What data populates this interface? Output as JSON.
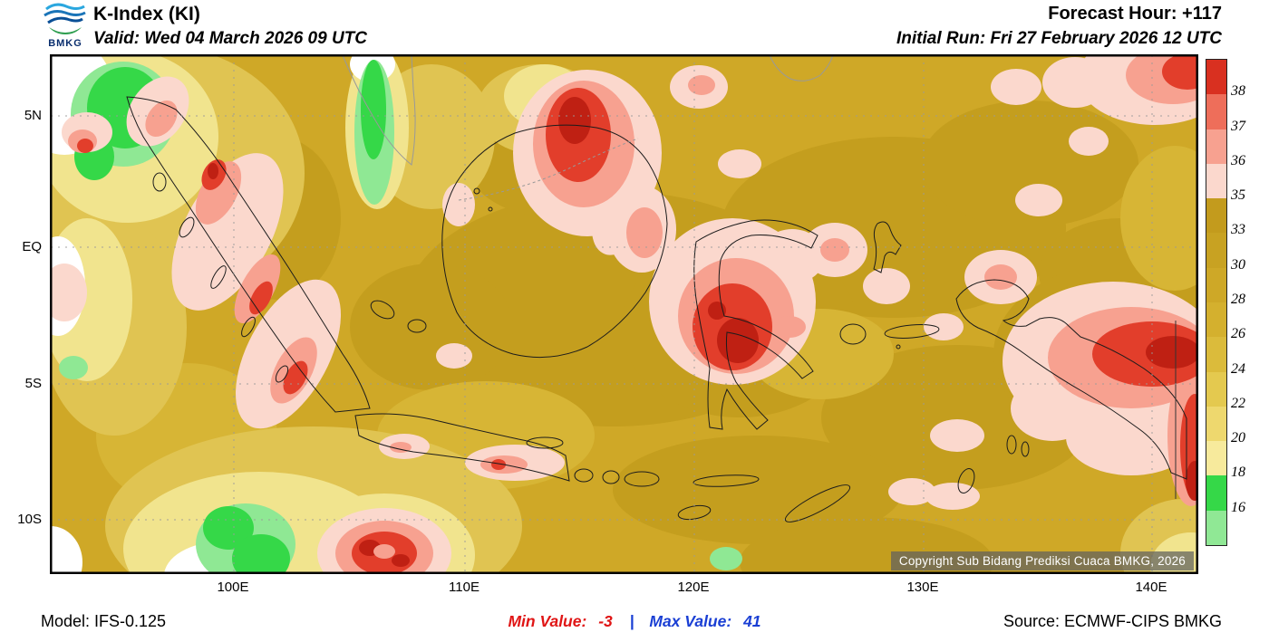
{
  "header": {
    "logo_text": "BMKG",
    "title": "K-Index (KI)",
    "valid": "Valid: Wed 04 March 2026 09 UTC",
    "forecast_hour": "Forecast Hour: +117",
    "initial_run": "Initial Run: Fri 27 February 2026 12 UTC"
  },
  "map": {
    "lat_labels": [
      "5N",
      "EQ",
      "5S",
      "10S"
    ],
    "lon_labels": [
      "100E",
      "110E",
      "120E",
      "130E",
      "140E"
    ],
    "copyright": "Copyright Sub Bidang Prediksi Cuaca BMKG, 2026"
  },
  "colorbar": {
    "values": [
      "38",
      "37",
      "36",
      "35",
      "33",
      "30",
      "28",
      "26",
      "24",
      "22",
      "20",
      "18",
      "16"
    ],
    "segment_colors": [
      "#d93020",
      "#ee6e5a",
      "#f7a190",
      "#fbd8cd",
      "#c39b1d",
      "#c8a222",
      "#cea827",
      "#d4b02e",
      "#dbbb3b",
      "#e4c94f",
      "#eed86e",
      "#f7ea9c",
      "#35d848",
      "#90e895"
    ]
  },
  "palette": {
    "base_gold": "#cfa827",
    "dark_gold": "#c49e1e",
    "light_gold": "#e0c452",
    "pale_yellow": "#f1e48e",
    "green_bright": "#35d848",
    "green_light": "#8fe894",
    "pink": "#fbd8cd",
    "salmon": "#f7a190",
    "red": "#e23e2b",
    "dark_red": "#bf2013",
    "min_color": "#e01515",
    "max_color": "#1a3fd4"
  },
  "footer": {
    "model": "Model: IFS-0.125",
    "min_label": "Min Value:",
    "min_value": "-3",
    "separator": "|",
    "max_label": "Max Value:",
    "max_value": "41",
    "source": "Source: ECMWF-CIPS BMKG"
  }
}
